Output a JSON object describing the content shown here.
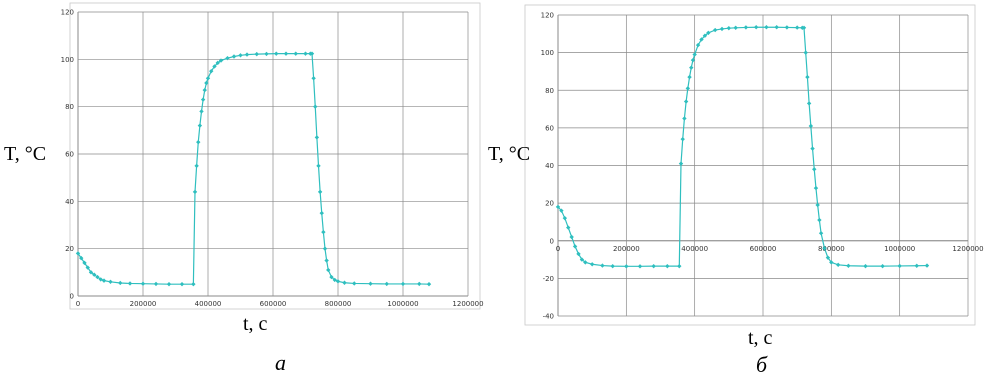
{
  "colors": {
    "series": "#2fbfbf",
    "grid": "#8a8a8a",
    "axis": "#8a8a8a",
    "border": "#c8c8c8"
  },
  "chart_data": [
    {
      "type": "scatter",
      "caption": "а",
      "xlabel": "t, с",
      "ylabel": "T, °C",
      "xlim": [
        0,
        1200000
      ],
      "ylim": [
        0,
        120
      ],
      "xticks": [
        0,
        200000,
        400000,
        600000,
        800000,
        1000000,
        1200000
      ],
      "yticks": [
        0,
        20,
        40,
        60,
        80,
        100,
        120
      ],
      "xtick_labels": [
        "0",
        "200000",
        "400000",
        "600000",
        "800000",
        "1000000",
        "1200000"
      ],
      "ytick_labels": [
        "0",
        "20",
        "40",
        "60",
        "80",
        "100",
        "120"
      ],
      "grid": true,
      "marker": "diamond",
      "series": [
        {
          "x": [
            0,
            10000,
            20000,
            30000,
            40000,
            50000,
            60000,
            70000,
            80000,
            100000,
            130000,
            160000,
            200000,
            240000,
            280000,
            320000,
            355000,
            360000,
            365000,
            370000,
            375000,
            380000,
            385000,
            390000,
            395000,
            400000,
            410000,
            420000,
            430000,
            440000,
            460000,
            480000,
            500000,
            520000,
            550000,
            580000,
            610000,
            640000,
            670000,
            700000,
            715000,
            720000,
            725000,
            730000,
            735000,
            740000,
            745000,
            750000,
            755000,
            760000,
            765000,
            770000,
            780000,
            790000,
            800000,
            820000,
            850000,
            900000,
            950000,
            1000000,
            1050000,
            1080000
          ],
          "y": [
            18,
            16,
            14,
            12,
            10,
            9,
            8,
            7,
            6.5,
            6,
            5.5,
            5.3,
            5.2,
            5.1,
            5,
            5,
            5,
            44,
            55,
            65,
            72,
            78,
            83,
            87,
            90,
            92,
            95,
            97,
            98.5,
            99.5,
            100.5,
            101.2,
            101.7,
            102,
            102.2,
            102.3,
            102.4,
            102.4,
            102.4,
            102.4,
            102.4,
            102.4,
            92,
            80,
            67,
            55,
            44,
            35,
            27,
            20,
            15,
            11,
            8,
            6.8,
            6.2,
            5.6,
            5.3,
            5.2,
            5.1,
            5.1,
            5.1,
            5
          ]
        }
      ]
    },
    {
      "type": "scatter",
      "caption": "б",
      "xlabel": "t, с",
      "ylabel": "T, °C",
      "xlim": [
        0,
        1200000
      ],
      "ylim": [
        -40,
        120
      ],
      "xticks": [
        0,
        200000,
        400000,
        600000,
        800000,
        1000000,
        1200000
      ],
      "yticks": [
        -40,
        -20,
        0,
        20,
        40,
        60,
        80,
        100,
        120
      ],
      "xtick_labels": [
        "0",
        "200000",
        "400000",
        "600000",
        "800000",
        "1000000",
        "1200000"
      ],
      "ytick_labels": [
        "-40",
        "-20",
        "0",
        "20",
        "40",
        "60",
        "80",
        "100",
        "120"
      ],
      "grid": true,
      "marker": "diamond",
      "series": [
        {
          "x": [
            0,
            10000,
            20000,
            30000,
            40000,
            50000,
            60000,
            70000,
            80000,
            100000,
            130000,
            160000,
            200000,
            240000,
            280000,
            320000,
            355000,
            360000,
            365000,
            370000,
            375000,
            380000,
            385000,
            390000,
            395000,
            400000,
            410000,
            420000,
            430000,
            440000,
            460000,
            480000,
            500000,
            520000,
            550000,
            580000,
            610000,
            640000,
            670000,
            700000,
            715000,
            720000,
            725000,
            730000,
            735000,
            740000,
            745000,
            750000,
            755000,
            760000,
            765000,
            770000,
            780000,
            790000,
            800000,
            820000,
            850000,
            900000,
            950000,
            1000000,
            1050000,
            1080000
          ],
          "y": [
            18,
            16,
            12,
            7,
            2,
            -3,
            -7,
            -10,
            -11.5,
            -12.5,
            -13.2,
            -13.5,
            -13.6,
            -13.6,
            -13.5,
            -13.5,
            -13.5,
            41,
            54,
            65,
            74,
            81,
            87,
            92,
            96,
            99,
            104,
            107,
            109,
            110.5,
            112,
            112.6,
            113,
            113.2,
            113.4,
            113.5,
            113.5,
            113.5,
            113.4,
            113.3,
            113.2,
            113.2,
            100,
            87,
            73,
            61,
            49,
            38,
            28,
            19,
            11,
            4,
            -4,
            -9,
            -11.5,
            -12.8,
            -13.3,
            -13.5,
            -13.5,
            -13.4,
            -13.3,
            -13.2
          ]
        }
      ]
    }
  ]
}
